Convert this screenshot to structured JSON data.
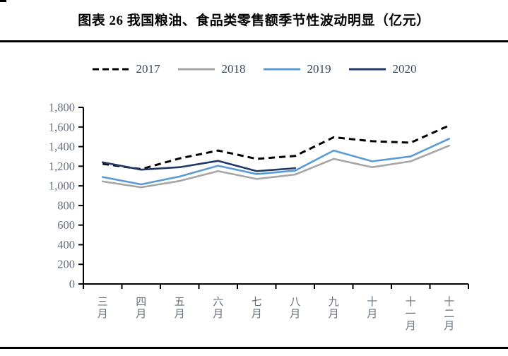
{
  "page": {
    "title": "图表 26 我国粮油、食品类零售额季节性波动明显（亿元）"
  },
  "chart_data": {
    "type": "line",
    "title": "图表 26 我国粮油、食品类零售额季节性波动明显（亿元）",
    "unit": "亿元",
    "categories": [
      "三月",
      "四月",
      "五月",
      "六月",
      "七月",
      "八月",
      "九月",
      "十月",
      "十一月",
      "十二月"
    ],
    "series": [
      {
        "name": "2017",
        "color": "#000000",
        "dash": true,
        "values": [
          1225,
          1170,
          1280,
          1360,
          1275,
          1305,
          1495,
          1455,
          1440,
          1615
        ]
      },
      {
        "name": "2018",
        "color": "#a6a6a6",
        "dash": false,
        "values": [
          1045,
          985,
          1050,
          1150,
          1070,
          1115,
          1275,
          1190,
          1250,
          1410
        ]
      },
      {
        "name": "2019",
        "color": "#5b9bd5",
        "dash": false,
        "values": [
          1090,
          1015,
          1095,
          1205,
          1120,
          1155,
          1360,
          1250,
          1300,
          1480
        ]
      },
      {
        "name": "2020",
        "color": "#1f3864",
        "dash": false,
        "values": [
          1240,
          1165,
          1190,
          1255,
          1150,
          1180,
          null,
          null,
          null,
          null
        ]
      }
    ],
    "ylim": [
      0,
      1800
    ],
    "ytick_step": 200,
    "ytick_labels": [
      "0",
      "200",
      "400",
      "600",
      "800",
      "1,000",
      "1,200",
      "1,400",
      "1,600",
      "1,800"
    ],
    "grid": false,
    "legend_position": "top"
  },
  "colors": {
    "axis_text": "#66707e",
    "legend_text": "#3b4a5e",
    "axis_line": "#000000",
    "rule": "#000000"
  }
}
